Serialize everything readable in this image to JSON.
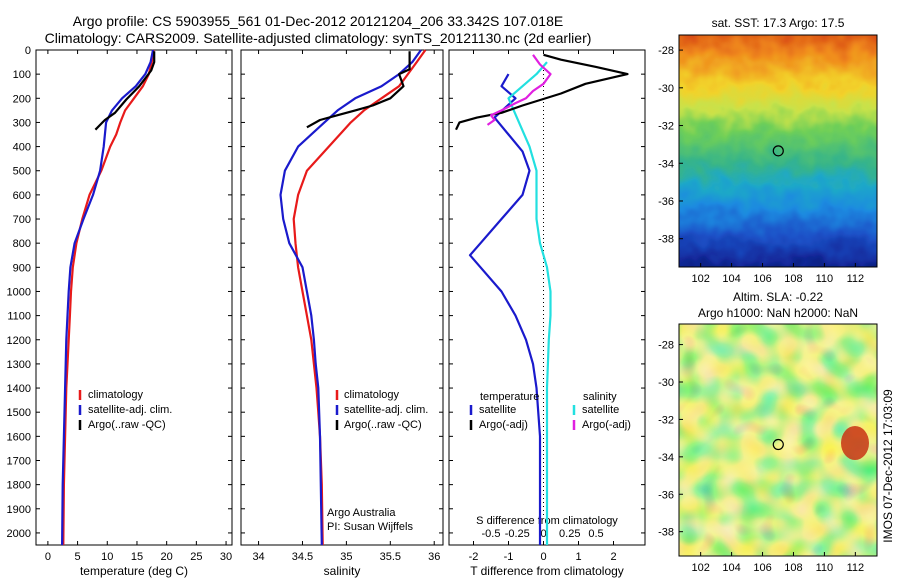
{
  "header": {
    "line1": "Argo profile: CS 5903955_561 01-Dec-2012 20121204_206 33.342S 107.018E",
    "line2": "Climatology: CARS2009. Satellite-adjusted climatology: synTS_20121130.nc (2d earlier)"
  },
  "colors": {
    "climatology": "#e81a1a",
    "satellite": "#1a1acc",
    "argo": "#000000",
    "salinity_satellite": "#22e0e0",
    "salinity_argo": "#e020e0"
  },
  "depth_axis": {
    "ylim": [
      0,
      2050
    ],
    "ticks": [
      0,
      100,
      200,
      300,
      400,
      500,
      600,
      700,
      800,
      900,
      1000,
      1100,
      1200,
      1300,
      1400,
      1500,
      1600,
      1700,
      1800,
      1900,
      2000
    ]
  },
  "chart_data": [
    {
      "type": "line",
      "id": "temperature",
      "xlabel": "temperature (deg C)",
      "xlim": [
        -2,
        31
      ],
      "xticks": [
        0,
        5,
        10,
        15,
        20,
        25,
        30
      ],
      "legend": {
        "placement": "lower-center",
        "entries": [
          "climatology",
          "satellite-adj. clim.",
          "Argo(..raw -QC)"
        ]
      },
      "series": [
        {
          "name": "climatology",
          "color": "climatology",
          "x": [
            17.8,
            17.5,
            17.0,
            16.0,
            14.5,
            13.0,
            12.2,
            11.5,
            10.5,
            9.0,
            7.0,
            5.8,
            4.8,
            4.2,
            3.9,
            3.7,
            3.5,
            3.3,
            3.1,
            3.0,
            2.9,
            2.8,
            2.7,
            2.6
          ],
          "y": [
            0,
            50,
            100,
            150,
            200,
            250,
            300,
            350,
            400,
            500,
            600,
            700,
            800,
            900,
            1000,
            1100,
            1200,
            1300,
            1400,
            1500,
            1600,
            1700,
            1800,
            2050
          ]
        },
        {
          "name": "satellite-adj. clim.",
          "color": "satellite",
          "x": [
            17.7,
            17.3,
            16.4,
            14.8,
            12.5,
            10.8,
            9.8,
            9.4,
            8.8,
            7.6,
            6.0,
            4.5,
            3.8,
            3.5,
            3.3,
            3.1,
            3.0,
            2.9,
            2.8,
            2.7,
            2.6,
            2.5,
            2.4
          ],
          "y": [
            0,
            50,
            100,
            150,
            200,
            250,
            300,
            400,
            500,
            600,
            700,
            800,
            900,
            1000,
            1100,
            1200,
            1300,
            1400,
            1500,
            1600,
            1700,
            1800,
            2050
          ]
        },
        {
          "name": "Argo(..raw -QC)",
          "color": "argo",
          "x": [
            17.9,
            17.9,
            17.4,
            17.1,
            15.4,
            13.2,
            11.3,
            9.6,
            9.0,
            8.0
          ],
          "y": [
            5,
            50,
            85,
            95,
            150,
            205,
            260,
            290,
            305,
            330
          ]
        }
      ]
    },
    {
      "type": "line",
      "id": "salinity",
      "xlabel": "salinity",
      "xlim": [
        33.8,
        36.1
      ],
      "xticks": [
        34,
        34.5,
        35,
        35.5,
        36
      ],
      "legend": {
        "placement": "lower-center",
        "entries": [
          "climatology",
          "satellite-adj. clim.",
          "Argo(..raw -QC)"
        ]
      },
      "notes": [
        "Argo Australia",
        "PI: Susan Wijffels"
      ],
      "series": [
        {
          "name": "climatology",
          "color": "climatology",
          "x": [
            35.9,
            35.8,
            35.7,
            35.6,
            35.4,
            35.2,
            35.05,
            34.8,
            34.55,
            34.45,
            34.4,
            34.42,
            34.45,
            34.5,
            34.55,
            34.6,
            34.63,
            34.66,
            34.68,
            34.7,
            34.72,
            34.73
          ],
          "y": [
            0,
            50,
            100,
            150,
            200,
            250,
            300,
            400,
            500,
            600,
            700,
            800,
            900,
            1000,
            1100,
            1200,
            1300,
            1400,
            1500,
            1600,
            1800,
            2050
          ]
        },
        {
          "name": "satellite-adj. clim.",
          "color": "satellite",
          "x": [
            35.85,
            35.75,
            35.6,
            35.4,
            35.1,
            34.9,
            34.75,
            34.45,
            34.3,
            34.25,
            34.28,
            34.35,
            34.5,
            34.55,
            34.6,
            34.63,
            34.65,
            34.68,
            34.7,
            34.72
          ],
          "y": [
            0,
            50,
            100,
            150,
            200,
            250,
            300,
            400,
            500,
            600,
            700,
            800,
            900,
            1000,
            1100,
            1200,
            1300,
            1400,
            1600,
            2050
          ]
        },
        {
          "name": "Argo(..raw -QC)",
          "color": "argo",
          "x": [
            35.72,
            35.72,
            35.6,
            35.65,
            35.5,
            35.3,
            35.1,
            34.9,
            34.7,
            34.55
          ],
          "y": [
            5,
            80,
            100,
            150,
            200,
            230,
            250,
            270,
            290,
            320
          ]
        }
      ]
    },
    {
      "type": "line",
      "id": "difference",
      "xlabel": "T difference from climatology",
      "xlabel_top": "S difference from climatology",
      "xlim": [
        -2.7,
        2.9
      ],
      "xticks": [
        -2,
        -1,
        0,
        1,
        2
      ],
      "top_ticks": {
        "values": [
          -1.5,
          -0.75,
          0,
          0.75,
          1.5
        ],
        "labels": [
          "-0.5",
          "-0.25",
          "0",
          "0.25",
          "0.5"
        ]
      },
      "legend": {
        "placement": "lower-center",
        "temperature_title": "temperature",
        "salinity_title": "salinity",
        "temperature_entries": [
          "satellite",
          "Argo(-adj)"
        ],
        "salinity_entries": [
          "satellite",
          "Argo(-adj)"
        ]
      },
      "series": [
        {
          "name": "T satellite",
          "color": "satellite",
          "x": [
            -1.0,
            -1.2,
            -0.8,
            -1.4,
            -1.0,
            -0.6,
            -0.4,
            -0.6,
            -1.2,
            -1.8,
            -2.1,
            -1.8,
            -1.2,
            -0.8,
            -0.5,
            -0.3,
            -0.2,
            -0.1,
            -0.1,
            -0.1
          ],
          "y": [
            100,
            150,
            200,
            280,
            350,
            420,
            500,
            600,
            700,
            800,
            850,
            900,
            1000,
            1100,
            1200,
            1300,
            1400,
            1600,
            1800,
            2050
          ]
        },
        {
          "name": "S satellite",
          "color": "salinity_satellite",
          "x": [
            0.1,
            -0.2,
            -0.6,
            -1.0,
            -0.7,
            -0.4,
            -0.2,
            -0.2,
            -0.2,
            -0.1,
            0.1,
            0.2,
            0.2,
            0.15,
            0.1,
            0.1,
            0.1,
            0.1
          ],
          "y": [
            50,
            100,
            150,
            200,
            300,
            400,
            500,
            600,
            700,
            800,
            900,
            1000,
            1100,
            1200,
            1400,
            1600,
            1800,
            2050
          ]
        },
        {
          "name": "T Argo(-adj)",
          "color": "argo",
          "x": [
            0.0,
            0.5,
            1.5,
            2.4,
            1.2,
            0.5,
            -0.6,
            -1.2,
            -1.9,
            -2.4,
            -2.5
          ],
          "y": [
            20,
            40,
            70,
            100,
            140,
            180,
            230,
            260,
            280,
            300,
            330
          ]
        },
        {
          "name": "S Argo(-adj)",
          "color": "salinity_argo",
          "x": [
            -0.3,
            -0.1,
            0.2,
            0.0,
            -0.3,
            -0.5,
            -0.8,
            -1.2,
            -1.5,
            -1.4,
            -1.6
          ],
          "y": [
            20,
            60,
            100,
            140,
            170,
            200,
            220,
            250,
            270,
            290,
            310
          ]
        }
      ]
    },
    {
      "type": "heatmap",
      "id": "sst_map",
      "title": "sat. SST: 17.3  Argo: 17.5",
      "xlim": [
        100.6,
        113.4
      ],
      "ylim": [
        -39.5,
        -27.2
      ],
      "xticks": [
        102,
        104,
        106,
        108,
        110,
        112
      ],
      "yticks": [
        -28,
        -30,
        -32,
        -34,
        -36,
        -38
      ],
      "marker": {
        "lon": 107.018,
        "lat": -33.342
      }
    },
    {
      "type": "heatmap",
      "id": "sla_map",
      "title": "Altim. SLA: -0.22",
      "subtitle": "Argo h1000: NaN  h2000: NaN",
      "xlim": [
        100.6,
        113.4
      ],
      "ylim": [
        -39.3,
        -26.9
      ],
      "xticks": [
        102,
        104,
        106,
        108,
        110,
        112
      ],
      "yticks": [
        -28,
        -30,
        -32,
        -34,
        -36,
        -38
      ],
      "marker": {
        "lon": 107.018,
        "lat": -33.342
      }
    }
  ],
  "footer": {
    "stamp": "IMOS 07-Dec-2012 17:03:09"
  }
}
